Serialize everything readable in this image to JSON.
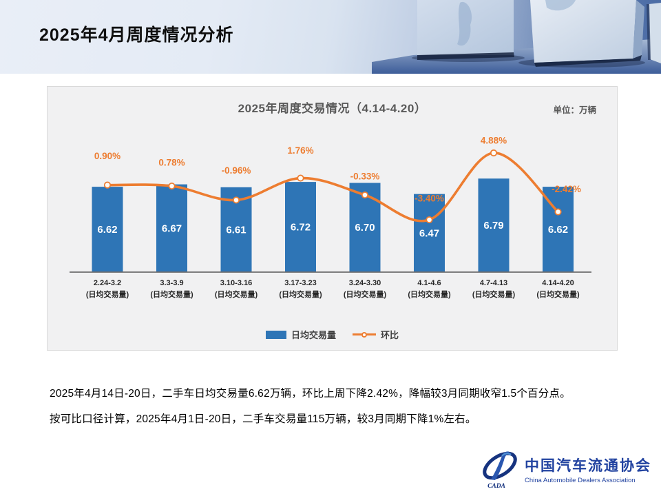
{
  "slide": {
    "title": "2025年4月周度情况分析",
    "body_lines": [
      "2025年4月14日-20日，二手车日均交易量6.62万辆，环比上周下降2.42%，降幅较3月同期收窄1.5个百分点。",
      "按可比口径计算，2025年4月1日-20日，二手车交易量115万辆，较3月同期下降1%左右。"
    ]
  },
  "chart": {
    "title": "2025年周度交易情况（4.14-4.20）",
    "unit_label": "单位：万辆",
    "legend": [
      {
        "label": "日均交易量"
      },
      {
        "label": "环比"
      }
    ]
  },
  "chart_data": {
    "type": "bar",
    "title": "2025年周度交易情况（4.14-4.20）",
    "unit": "万辆",
    "categories": [
      "2.24-3.2",
      "3.3-3.9",
      "3.10-3.16",
      "3.17-3.23",
      "3.24-3.30",
      "4.1-4.6",
      "4.7-4.13",
      "4.14-4.20"
    ],
    "category_sublabel": "(日均交易量)",
    "series": [
      {
        "name": "日均交易量",
        "type": "bar",
        "color": "#2E75B6",
        "values": [
          6.62,
          6.67,
          6.61,
          6.72,
          6.7,
          6.47,
          6.79,
          6.62
        ],
        "value_labels": [
          "6.62",
          "6.67",
          "6.61",
          "6.72",
          "6.70",
          "6.47",
          "6.79",
          "6.62"
        ]
      },
      {
        "name": "环比",
        "type": "line",
        "color": "#ED7D31",
        "values": [
          0.9,
          0.78,
          -0.96,
          1.76,
          -0.33,
          -3.4,
          4.88,
          -2.42
        ],
        "labels": [
          "0.90%",
          "0.78%",
          "-0.96%",
          "1.76%",
          "-0.33%",
          "-3.40%",
          "4.88%",
          "-2.42%"
        ]
      }
    ],
    "bar_axis_range": [
      4.85,
      7.2
    ],
    "line_axis_unit": "%",
    "grid": false,
    "value_axis_hidden": true,
    "legend_position": "bottom"
  },
  "footer_logo": {
    "name_cn": "中国汽车流通协会",
    "name_en": "China Automobile Dealers Association",
    "monogram": "CADA"
  },
  "colors": {
    "bar_blue": "#2E75B6",
    "line_orange": "#ED7D31",
    "panel_bg": "#F1F1F2",
    "logo_blue": "#2243A0",
    "title_gray": "#595959"
  }
}
